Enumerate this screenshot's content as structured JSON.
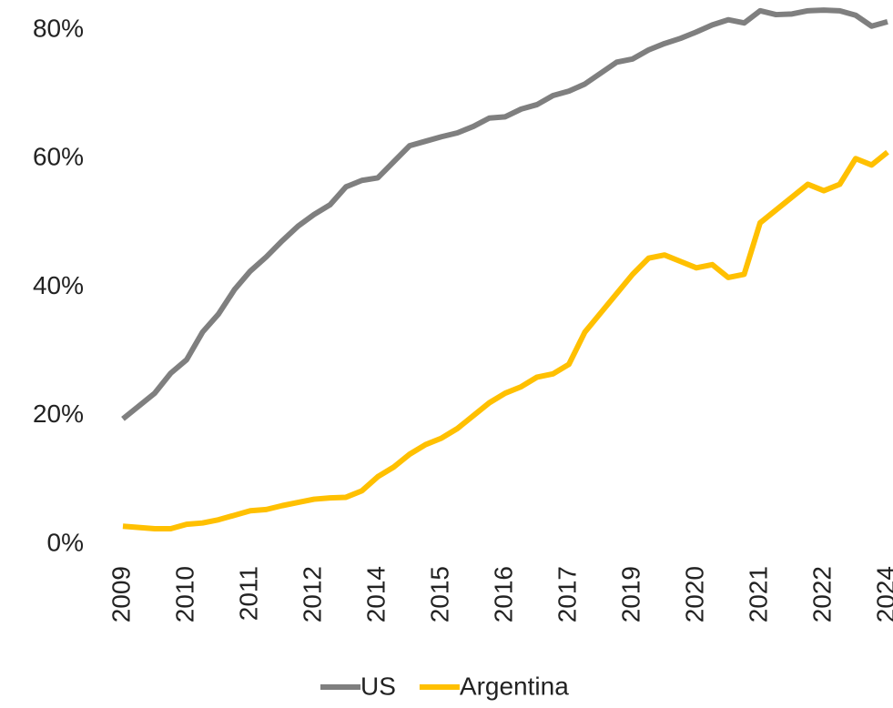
{
  "chart_data": {
    "type": "line",
    "categories": [
      "2009",
      null,
      null,
      null,
      "2010",
      null,
      null,
      null,
      "2011",
      null,
      null,
      null,
      "2012",
      null,
      null,
      null,
      "2014",
      null,
      null,
      null,
      "2015",
      null,
      null,
      null,
      "2016",
      null,
      null,
      null,
      "2017",
      null,
      null,
      null,
      "2019",
      null,
      null,
      null,
      "2020",
      null,
      null,
      null,
      "2021",
      null,
      null,
      null,
      "2022",
      null,
      null,
      null,
      "2024"
    ],
    "series": [
      {
        "name": "US",
        "color": "#7f7f7f",
        "values": [
          19.5,
          21.5,
          23.5,
          26.6,
          28.7,
          33,
          35.8,
          39.6,
          42.5,
          44.7,
          47.2,
          49.5,
          51.3,
          52.8,
          55.6,
          56.6,
          57,
          59.5,
          62,
          62.7,
          63.4,
          64,
          65,
          66.3,
          66.5,
          67.7,
          68.4,
          69.8,
          70.5,
          71.6,
          73.3,
          75,
          75.5,
          76.9,
          77.9,
          78.7,
          79.7,
          80.8,
          81.6,
          81.1,
          83,
          82.4,
          82.5,
          83,
          83.1,
          83,
          82.3,
          80.6,
          81.3
        ]
      },
      {
        "name": "Argentina",
        "color": "#ffc000",
        "values": [
          2.8,
          2.6,
          2.4,
          2.4,
          3.1,
          3.3,
          3.8,
          4.5,
          5.2,
          5.4,
          6,
          6.5,
          7,
          7.2,
          7.3,
          8.3,
          10.5,
          12,
          14,
          15.5,
          16.5,
          18,
          20,
          22,
          23.5,
          24.5,
          26,
          26.5,
          28,
          33,
          36,
          39,
          42,
          44.5,
          45,
          44,
          43,
          43.5,
          41.5,
          42,
          50,
          52,
          54,
          56,
          55,
          56,
          60,
          59,
          61
        ]
      }
    ],
    "ylim": [
      0,
      85
    ],
    "yticks": [
      {
        "value": 0,
        "label": "0%"
      },
      {
        "value": 20,
        "label": "20%"
      },
      {
        "value": 40,
        "label": "40%"
      },
      {
        "value": 60,
        "label": "60%"
      },
      {
        "value": 80,
        "label": "80%"
      }
    ],
    "grid": false,
    "legend": "bottom"
  }
}
